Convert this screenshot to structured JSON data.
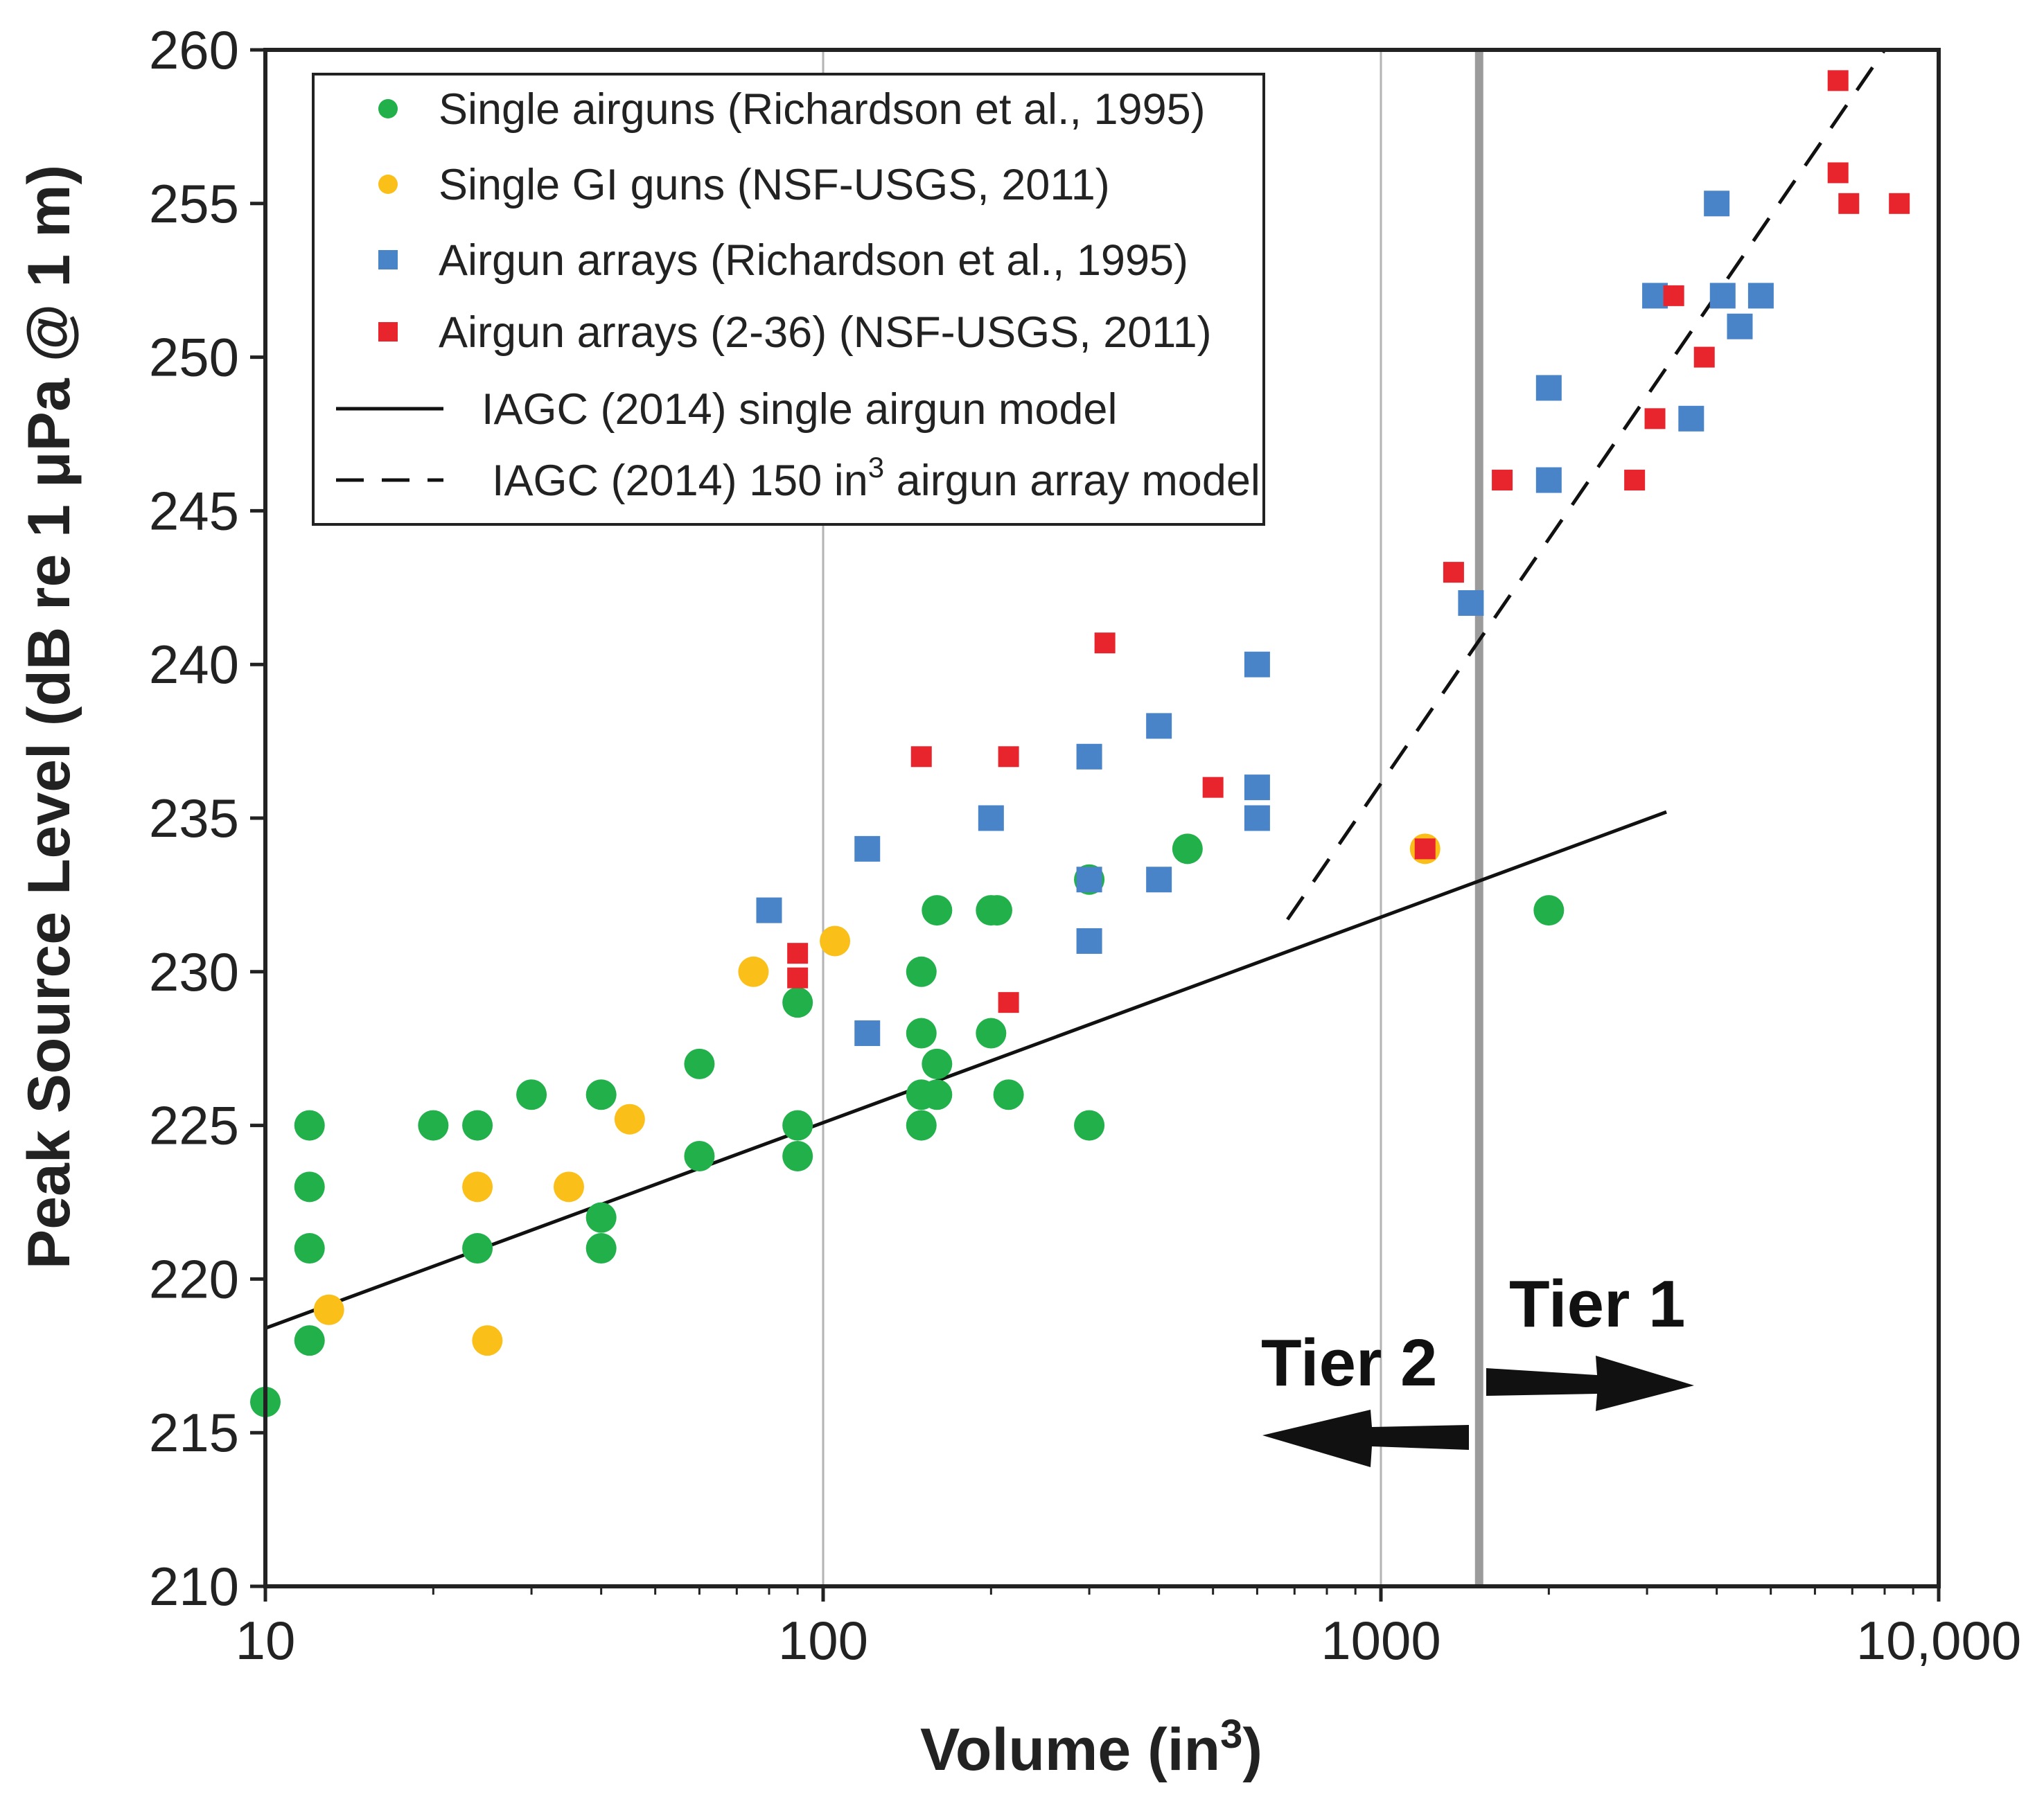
{
  "chart_data": {
    "type": "scatter",
    "title": "",
    "xlabel": "Volume (in",
    "xlabel_sup": "3",
    "xlabel_end": ")",
    "ylabel": "Peak Source Level (dB re 1 μPa @ 1 m)",
    "xscale": "log",
    "xlim": [
      10,
      10000
    ],
    "ylim": [
      210,
      260
    ],
    "x_ticks": [
      10,
      100,
      1000,
      10000
    ],
    "x_tick_labels": [
      "10",
      "100",
      "1000",
      "10,000"
    ],
    "y_ticks": [
      210,
      215,
      220,
      225,
      230,
      235,
      240,
      245,
      250,
      255,
      260
    ],
    "y_tick_labels": [
      "210",
      "215",
      "220",
      "225",
      "230",
      "235",
      "240",
      "245",
      "250",
      "255",
      "260"
    ],
    "vertical_lines": [
      {
        "x": 100,
        "style": "thin-gray"
      },
      {
        "x": 1000,
        "style": "thin-gray"
      },
      {
        "x": 1500,
        "style": "thick-gray"
      }
    ],
    "legend_position": "top-left",
    "series": [
      {
        "name": "Single airguns (Richardson et al., 1995)",
        "marker": "circle",
        "color": "#22b04b",
        "points": [
          [
            10,
            216
          ],
          [
            12,
            225
          ],
          [
            12,
            223
          ],
          [
            12,
            221
          ],
          [
            12,
            218
          ],
          [
            20,
            225
          ],
          [
            24,
            225
          ],
          [
            24,
            221
          ],
          [
            30,
            226
          ],
          [
            40,
            226
          ],
          [
            40,
            222
          ],
          [
            40,
            221
          ],
          [
            60,
            227
          ],
          [
            60,
            224
          ],
          [
            90,
            229
          ],
          [
            90,
            225
          ],
          [
            90,
            224
          ],
          [
            150,
            230
          ],
          [
            150,
            228
          ],
          [
            150,
            226
          ],
          [
            150,
            225
          ],
          [
            160,
            232
          ],
          [
            160,
            227
          ],
          [
            160,
            226
          ],
          [
            200,
            232
          ],
          [
            205,
            232
          ],
          [
            200,
            228
          ],
          [
            215,
            226
          ],
          [
            300,
            233
          ],
          [
            300,
            225
          ],
          [
            450,
            234
          ],
          [
            2000,
            232
          ]
        ]
      },
      {
        "name": "Single GI guns (NSF-USGS, 2011)",
        "marker": "circle",
        "color": "#fbbf1a",
        "points": [
          [
            13,
            219
          ],
          [
            24,
            223
          ],
          [
            25,
            218
          ],
          [
            35,
            223
          ],
          [
            45,
            225.2
          ],
          [
            75,
            230
          ],
          [
            105,
            231
          ],
          [
            1200,
            234
          ]
        ]
      },
      {
        "name": "Airgun arrays (Richardson et al., 1995)",
        "marker": "square",
        "color": "#4a84c8",
        "points": [
          [
            80,
            232
          ],
          [
            120,
            234
          ],
          [
            120,
            228
          ],
          [
            200,
            235
          ],
          [
            300,
            237
          ],
          [
            300,
            233
          ],
          [
            300,
            231
          ],
          [
            400,
            238
          ],
          [
            400,
            233
          ],
          [
            600,
            240
          ],
          [
            600,
            236
          ],
          [
            600,
            235
          ],
          [
            1450,
            242
          ],
          [
            2000,
            249
          ],
          [
            2000,
            246
          ],
          [
            3100,
            252
          ],
          [
            3600,
            248
          ],
          [
            4000,
            255
          ],
          [
            4100,
            252
          ],
          [
            4400,
            251
          ],
          [
            4800,
            252
          ]
        ]
      },
      {
        "name": "Airgun arrays (2-36) (NSF-USGS, 2011)",
        "marker": "square",
        "color": "#e8242c",
        "points": [
          [
            90,
            230.6
          ],
          [
            90,
            229.8
          ],
          [
            150,
            237
          ],
          [
            215,
            237
          ],
          [
            215,
            229
          ],
          [
            320,
            240.7
          ],
          [
            500,
            236
          ],
          [
            1200,
            234
          ],
          [
            1350,
            243
          ],
          [
            1650,
            246
          ],
          [
            2850,
            246
          ],
          [
            3100,
            248
          ],
          [
            3350,
            252
          ],
          [
            3800,
            250
          ],
          [
            6600,
            259
          ],
          [
            6600,
            256
          ],
          [
            6900,
            255
          ],
          [
            8500,
            255
          ]
        ]
      }
    ],
    "models": [
      {
        "name": "IAGC (2014)  single airgun model",
        "style": "solid",
        "points": [
          [
            10,
            218.4
          ],
          [
            3250,
            235.2
          ]
        ]
      },
      {
        "name": "IAGC (2014)  150 in",
        "name_sup": "3",
        "name_end": " airgun array model",
        "style": "dashed",
        "points": [
          [
            680,
            231.7
          ],
          [
            8000,
            260
          ]
        ]
      }
    ],
    "annotations": [
      {
        "text": "Tier 1",
        "direction": "right"
      },
      {
        "text": "Tier 2",
        "direction": "left"
      }
    ]
  }
}
